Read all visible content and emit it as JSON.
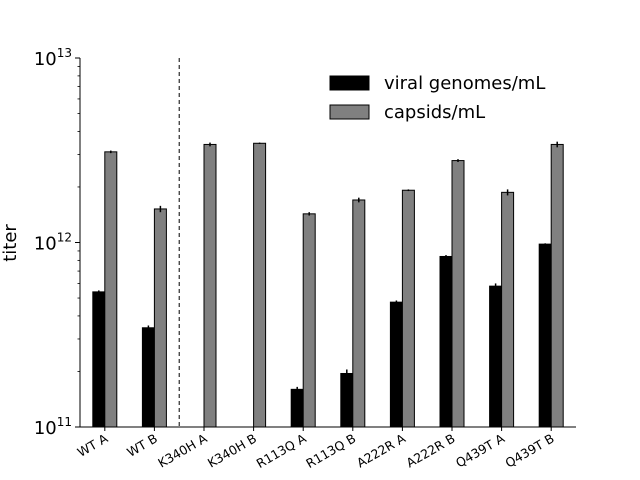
{
  "chart_data": {
    "type": "bar",
    "ylabel": "titer",
    "yscale": "log",
    "ylim": [
      100000000000.0,
      10000000000000.0
    ],
    "y_ticks": [
      {
        "value": 100000000000.0,
        "base": "10",
        "exp": "11"
      },
      {
        "value": 1000000000000.0,
        "base": "10",
        "exp": "12"
      },
      {
        "value": 10000000000000.0,
        "base": "10",
        "exp": "13"
      }
    ],
    "categories": [
      "WT A",
      "WT B",
      "K340H A",
      "K340H B",
      "R113Q A",
      "R113Q B",
      "A222R A",
      "A222R B",
      "Q439T A",
      "Q439T B"
    ],
    "series": [
      {
        "name": "viral genomes/mL",
        "color": "#000000",
        "values": [
          540000000000.0,
          345000000000.0,
          null,
          null,
          160000000000.0,
          195000000000.0,
          475000000000.0,
          840000000000.0,
          580000000000.0,
          980000000000.0
        ],
        "errors": [
          10000000000.0,
          10000000000.0,
          null,
          null,
          5000000000.0,
          10000000000.0,
          10000000000.0,
          15000000000.0,
          20000000000.0,
          10000000000.0
        ]
      },
      {
        "name": "capsids/mL",
        "color": "#808080",
        "values": [
          3100000000000.0,
          1520000000000.0,
          3400000000000.0,
          3450000000000.0,
          1430000000000.0,
          1700000000000.0,
          1920000000000.0,
          2780000000000.0,
          1870000000000.0,
          3400000000000.0
        ],
        "errors": [
          50000000000.0,
          60000000000.0,
          80000000000.0,
          30000000000.0,
          30000000000.0,
          50000000000.0,
          20000000000.0,
          50000000000.0,
          70000000000.0,
          120000000000.0
        ]
      }
    ],
    "divider_after_index": 1,
    "legend": "top-right",
    "grid": false
  }
}
